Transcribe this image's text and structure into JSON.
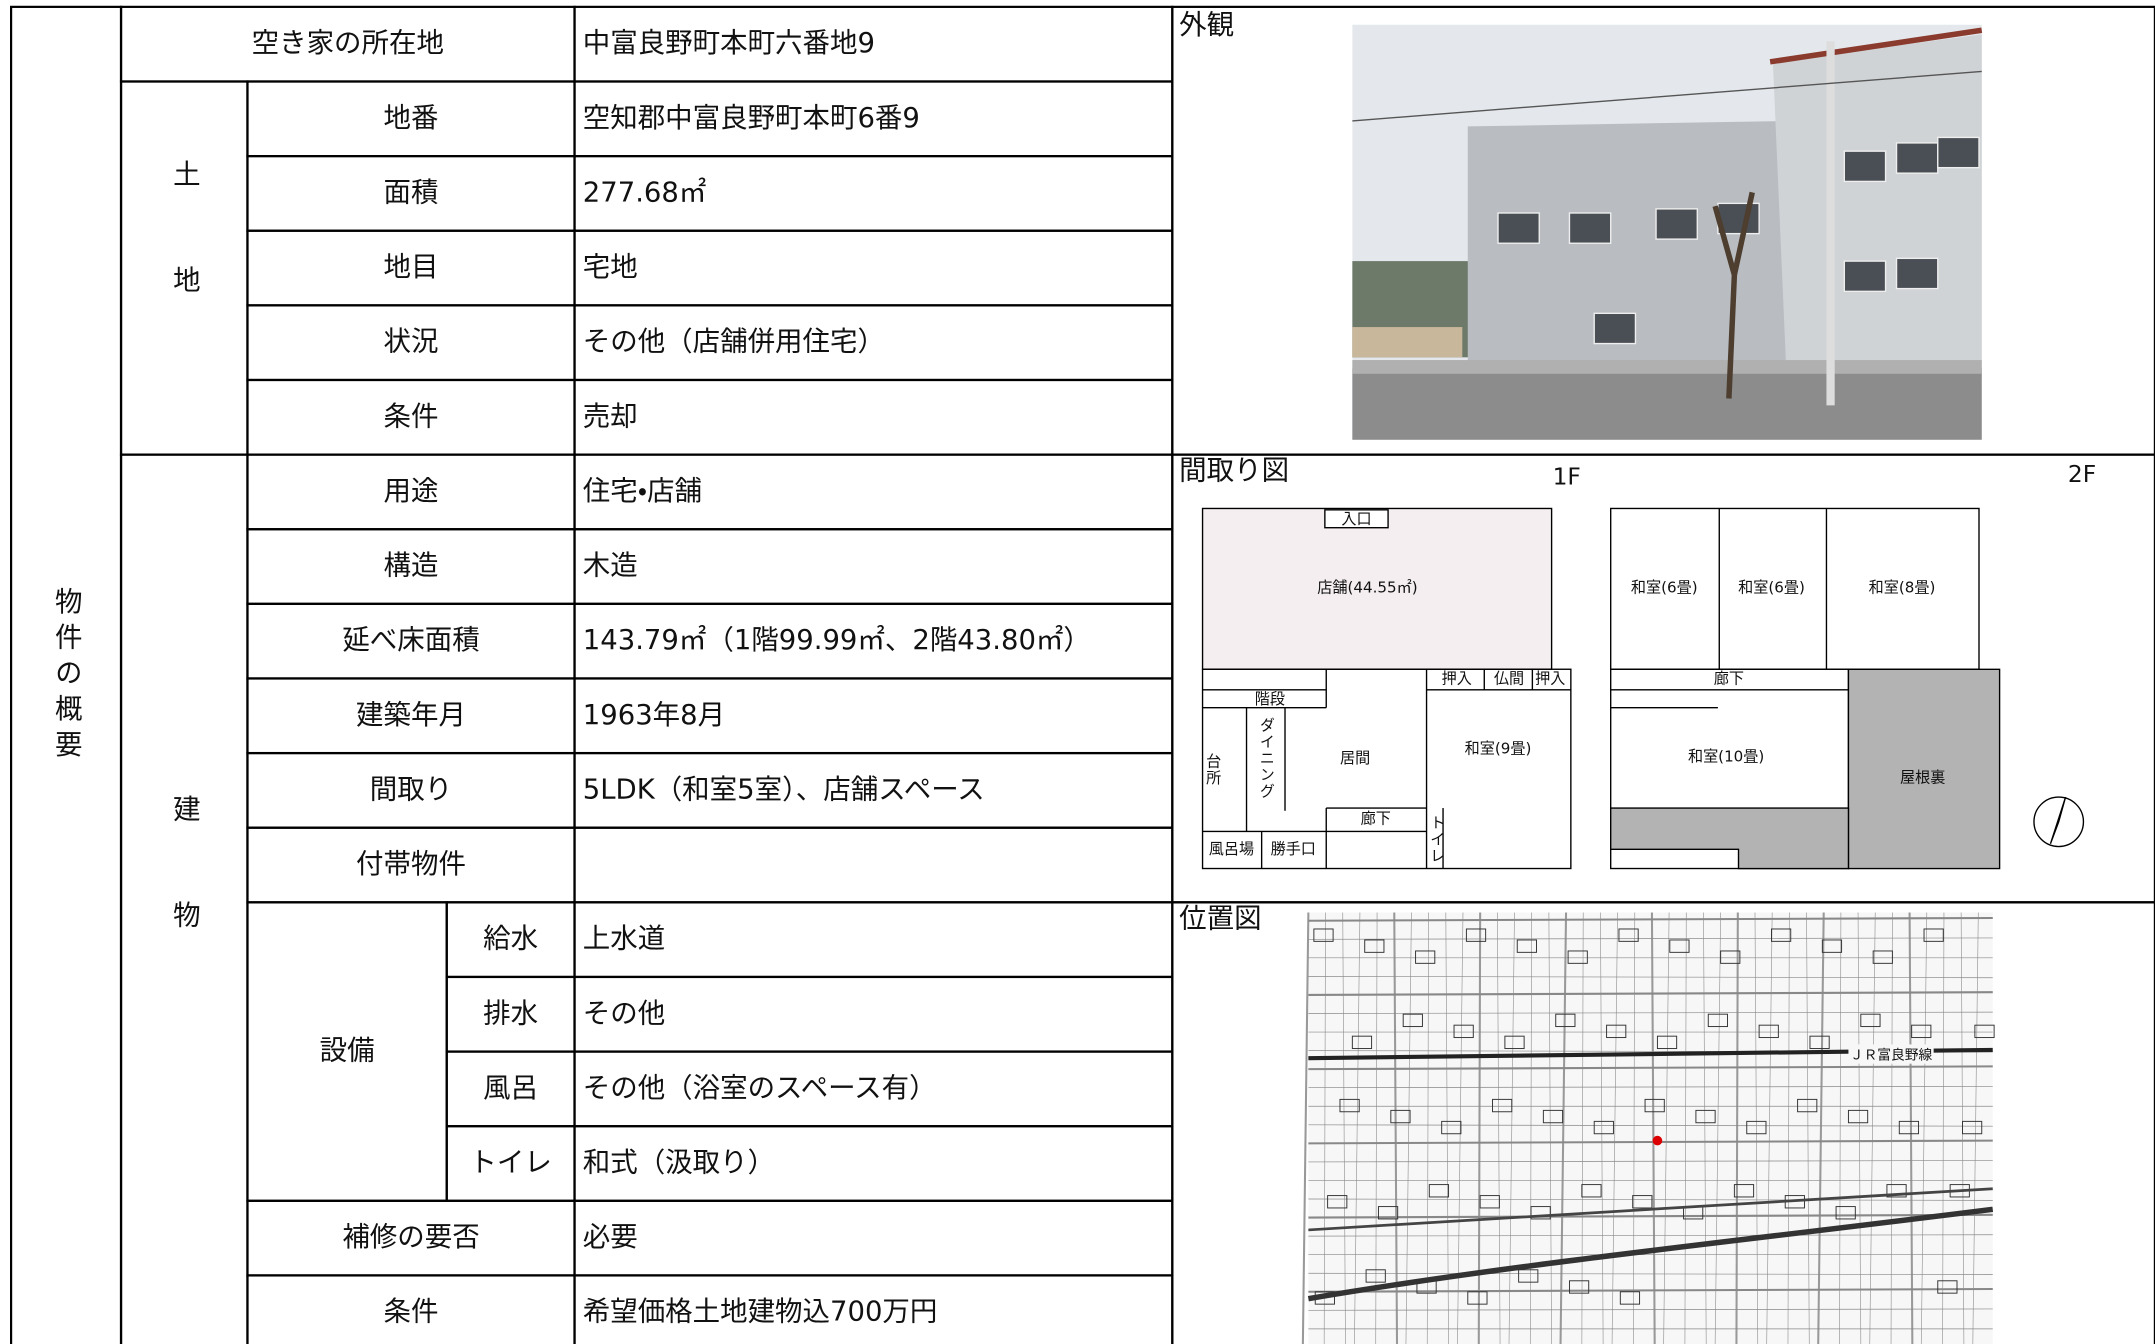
{
  "section_label": "物件の概要",
  "address": {
    "label": "空き家の所在地",
    "value": "中富良野町本町六番地9"
  },
  "land": {
    "label": "土地",
    "rows": [
      {
        "label": "地番",
        "value": "空知郡中富良野町本町6番9"
      },
      {
        "label": "面積",
        "value": "277.68㎡"
      },
      {
        "label": "地目",
        "value": "宅地"
      },
      {
        "label": "状況",
        "value": "その他（店舗併用住宅）"
      },
      {
        "label": "条件",
        "value": "売却"
      }
    ]
  },
  "building": {
    "label": "建物",
    "rows": [
      {
        "label": "用途",
        "value": "住宅・店舗"
      },
      {
        "label": "構造",
        "value": "木造"
      },
      {
        "label": "延べ床面積",
        "value": "143.79㎡（1階99.99㎡、2階43.80㎡）"
      },
      {
        "label": "建築年月",
        "value": "1963年8月"
      },
      {
        "label": "間取り",
        "value": "5LDK（和室5室）、店舗スペース"
      },
      {
        "label": "付帯物件"
      }
    ],
    "equipment": {
      "label": "設備",
      "rows": [
        {
          "label": "給水",
          "value": "上水道"
        },
        {
          "label": "排水",
          "value": "その他"
        },
        {
          "label": "風呂",
          "value": "その他（浴室のスペース有）"
        },
        {
          "label": "トイレ",
          "value": "和式（汲取り）"
        }
      ]
    },
    "other_rows": [
      {
        "label": "補修の要否",
        "value": "必要"
      },
      {
        "label": "条件",
        "value": "希望価格土地建物込700万円"
      }
    ]
  },
  "exterior": {
    "title": "外観"
  },
  "floor_plan": {
    "title": "間取り図",
    "floors": [
      {
        "name": "1F",
        "rooms": [
          "入口",
          "店舗(44.55㎡)",
          "階段",
          "ダイニング",
          "台所",
          "居間",
          "押入",
          "仏間",
          "押入",
          "和室(9畳)",
          "廊下",
          "トイレ",
          "風呂場",
          "勝手口"
        ]
      },
      {
        "name": "2F",
        "rooms": [
          "和室(6畳)",
          "和室(6畳)",
          "和室(8畳)",
          "廊下",
          "和室(10畳)",
          "屋根裏"
        ]
      }
    ]
  },
  "location": {
    "title": "位置図",
    "map_labels": [
      "ＪＲ富良野線"
    ]
  }
}
